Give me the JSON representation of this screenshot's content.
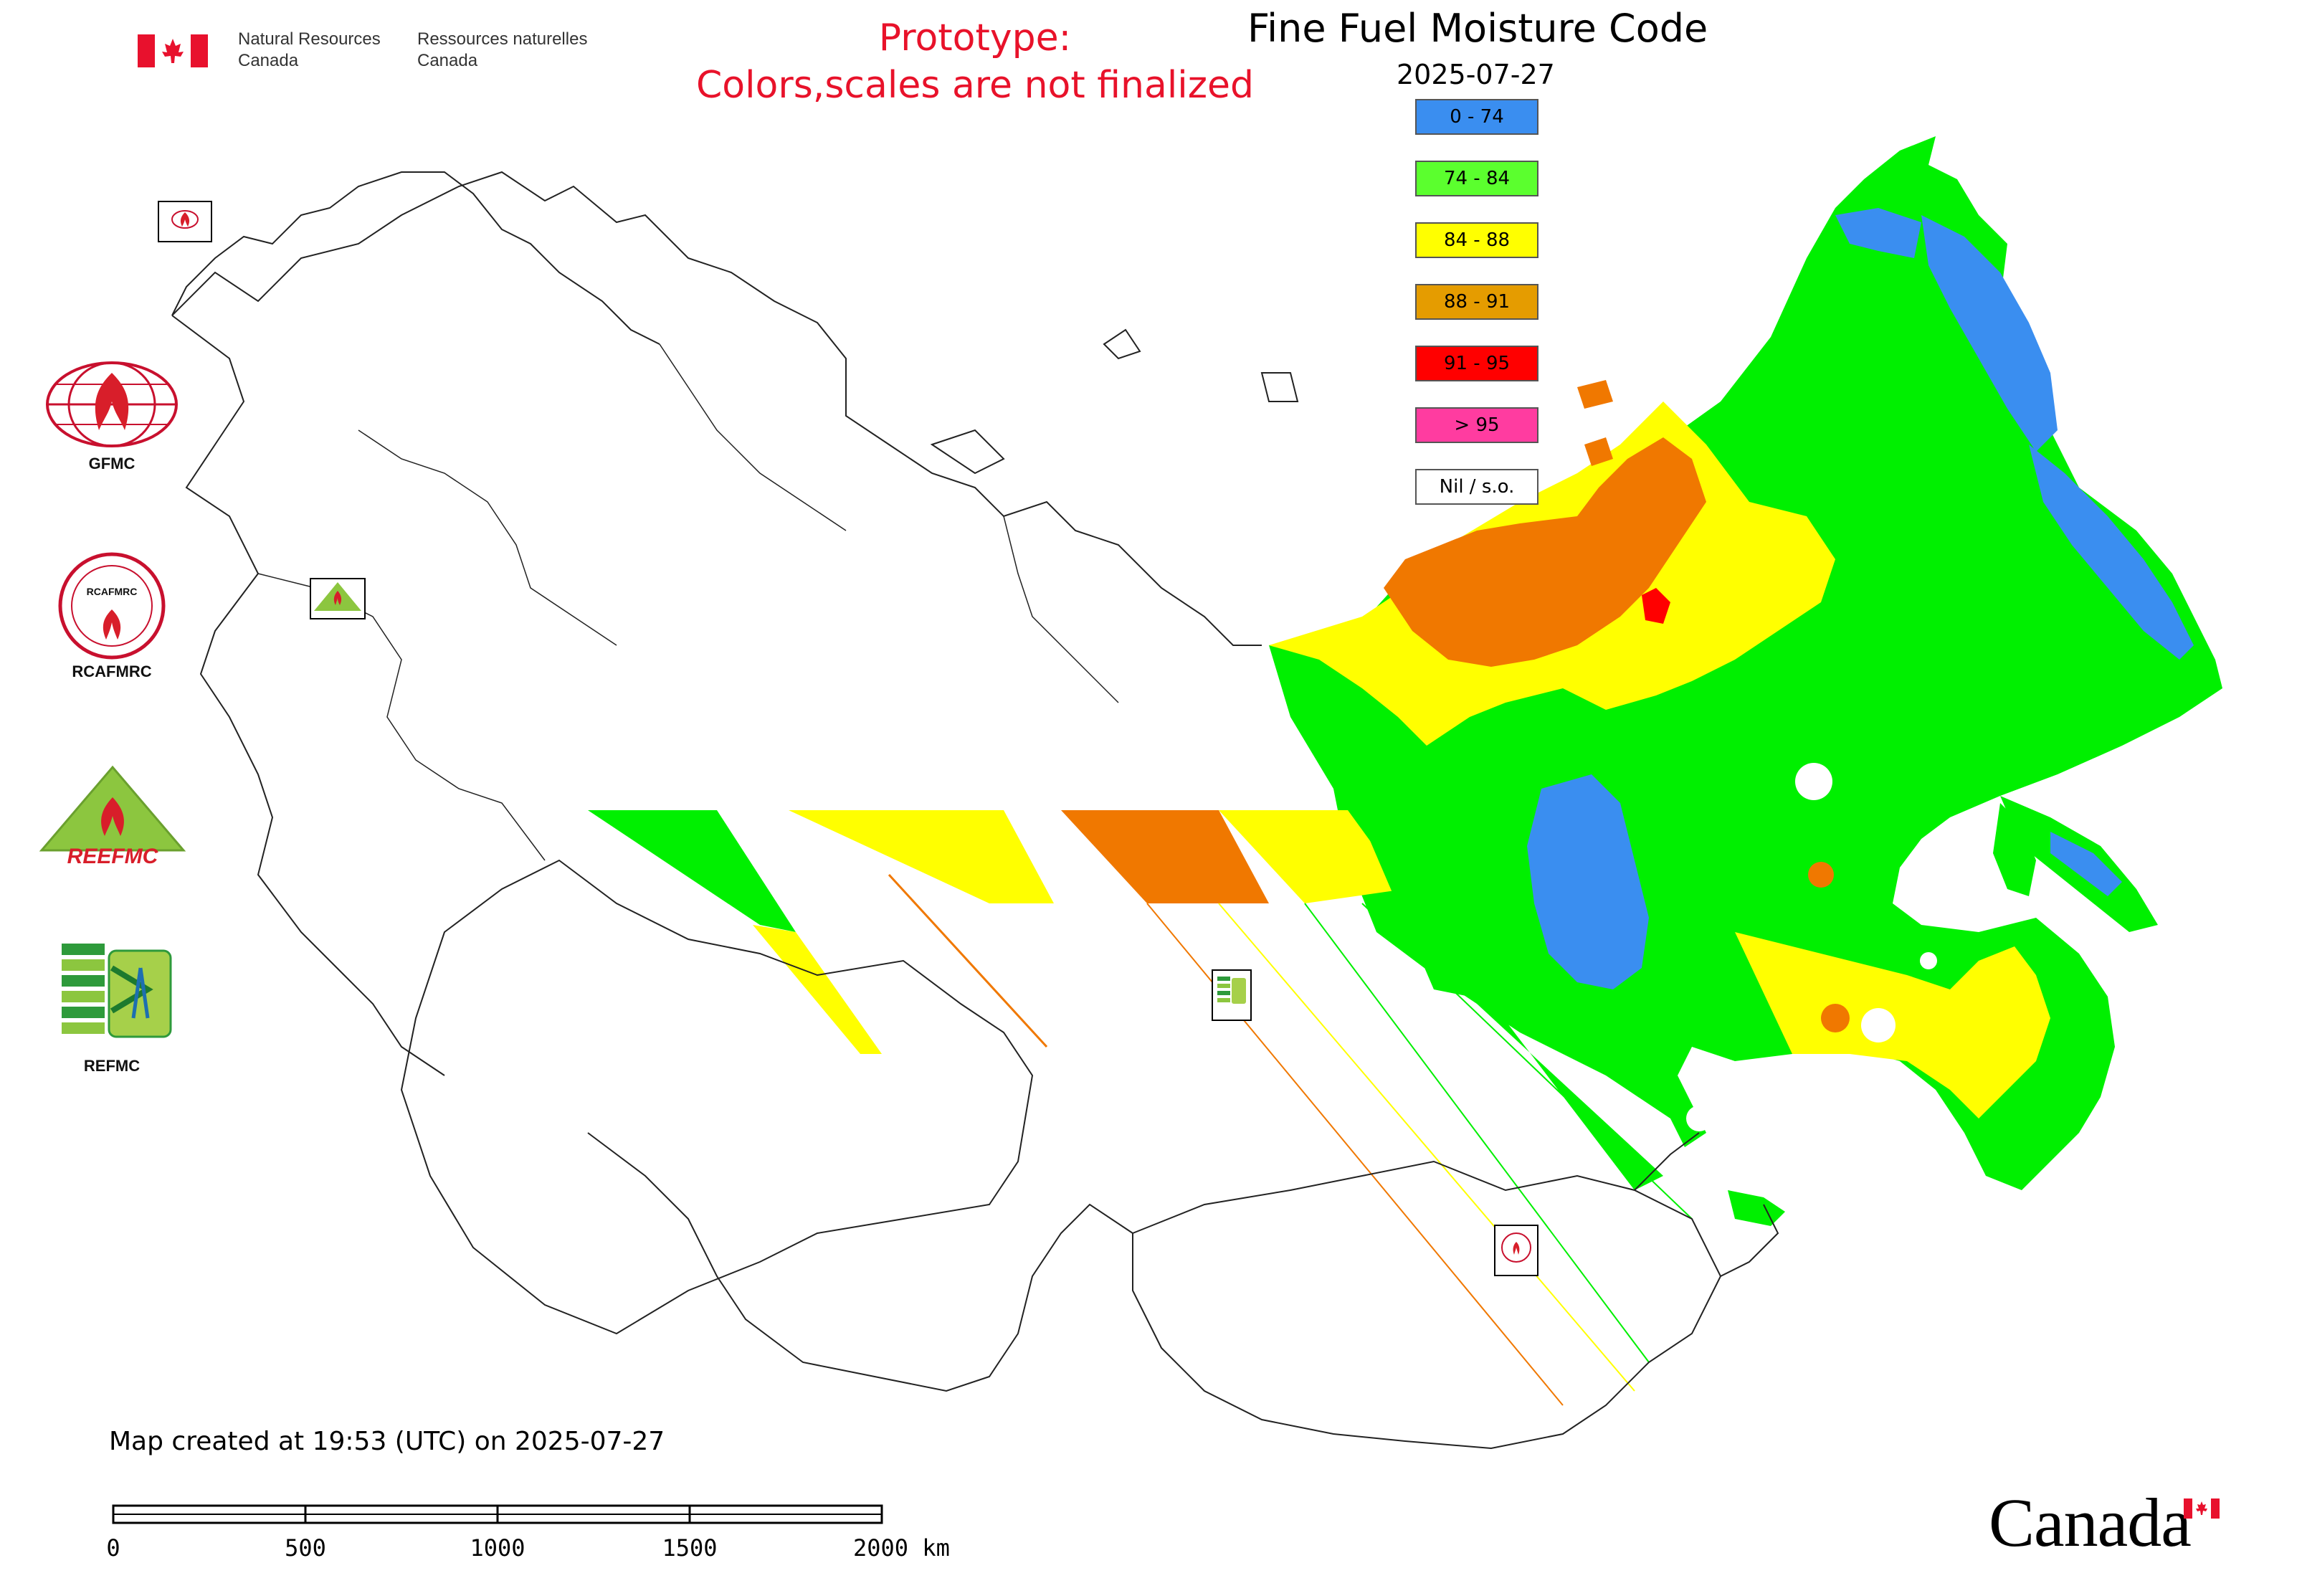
{
  "header": {
    "department_en_line1": "Natural Resources",
    "department_en_line2": "Canada",
    "department_fr_line1": "Ressources naturelles",
    "department_fr_line2": "Canada",
    "prototype_line1": "Prototype:",
    "prototype_line2": "Colors,scales are not finalized",
    "title": "Fine Fuel Moisture Code",
    "date": "2025-07-27"
  },
  "legend": {
    "items": [
      {
        "label": "0 - 74",
        "color": "#3a8ef0"
      },
      {
        "label": "74 - 84",
        "color": "#5bff2e"
      },
      {
        "label": "84 - 88",
        "color": "#ffff00"
      },
      {
        "label": "88 - 91",
        "color": "#e59c00"
      },
      {
        "label": "91 - 95",
        "color": "#ff0000"
      },
      {
        "label": "> 95",
        "color": "#ff3ca0"
      },
      {
        "label": "Nil / s.o.",
        "color": "#ffffff"
      }
    ]
  },
  "organizations": {
    "gfmc": "GFMC",
    "rcafmrc": "RCAFMRC",
    "reefmc": "REEFMC",
    "refmc": "REFMC"
  },
  "footer": {
    "created": "Map created at 19:53 (UTC) on 2025-07-27",
    "scale_ticks": [
      "0",
      "500",
      "1000",
      "1500",
      "2000 km"
    ],
    "wordmark": "Canada"
  },
  "colors": {
    "blue": "#3a8ef0",
    "green": "#00f000",
    "yellow": "#ffff00",
    "orange": "#f07800",
    "red": "#ff0000",
    "prototype_text": "#e8122a",
    "canada_red": "#e8112d"
  }
}
